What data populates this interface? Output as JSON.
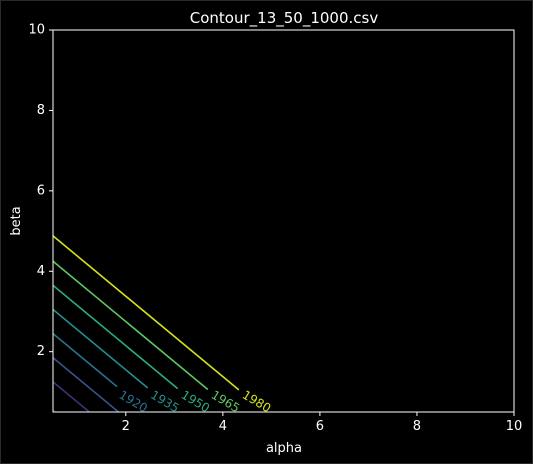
{
  "chart_data": {
    "type": "contour",
    "title": "Contour_13_50_1000.csv",
    "xlabel": "alpha",
    "ylabel": "beta",
    "xlim": [
      0.5,
      10
    ],
    "ylim": [
      0.5,
      10
    ],
    "x_ticks": [
      2,
      4,
      6,
      8,
      10
    ],
    "y_ticks": [
      2,
      4,
      6,
      8,
      10
    ],
    "grid": false,
    "levels": [
      {
        "segment": [
          [
            0.5,
            0.55
          ],
          [
            0.55,
            0.5
          ]
        ],
        "label": "",
        "color": "#440154"
      },
      {
        "segment": [
          [
            0.5,
            1.25
          ],
          [
            1.25,
            0.5
          ]
        ],
        "label": "",
        "color": "#472c7a"
      },
      {
        "segment": [
          [
            0.5,
            1.85
          ],
          [
            1.85,
            0.5
          ]
        ],
        "label": "",
        "color": "#3b518b"
      },
      {
        "segment": [
          [
            0.5,
            2.45
          ],
          [
            1.82,
            1.13
          ]
        ],
        "label": "1920",
        "color": "#2c718e",
        "label_at": [
          2.15,
          0.75
        ],
        "label_angle": 31
      },
      {
        "segment": [
          [
            0.5,
            3.05
          ],
          [
            2.45,
            1.1
          ]
        ],
        "label": "1935",
        "color": "#21918c",
        "label_at": [
          2.8,
          0.75
        ],
        "label_angle": 31
      },
      {
        "segment": [
          [
            0.5,
            3.65
          ],
          [
            3.07,
            1.08
          ]
        ],
        "label": "1950",
        "color": "#28ae80",
        "label_at": [
          3.43,
          0.75
        ],
        "label_angle": 31
      },
      {
        "segment": [
          [
            0.5,
            4.25
          ],
          [
            3.69,
            1.06
          ]
        ],
        "label": "1965",
        "color": "#5ec962",
        "label_at": [
          4.05,
          0.75
        ],
        "label_angle": 31
      },
      {
        "segment": [
          [
            0.5,
            4.88
          ],
          [
            4.33,
            1.05
          ]
        ],
        "label": "1980",
        "color": "#d7e219",
        "label_at": [
          4.69,
          0.75
        ],
        "label_angle": 31
      }
    ]
  }
}
